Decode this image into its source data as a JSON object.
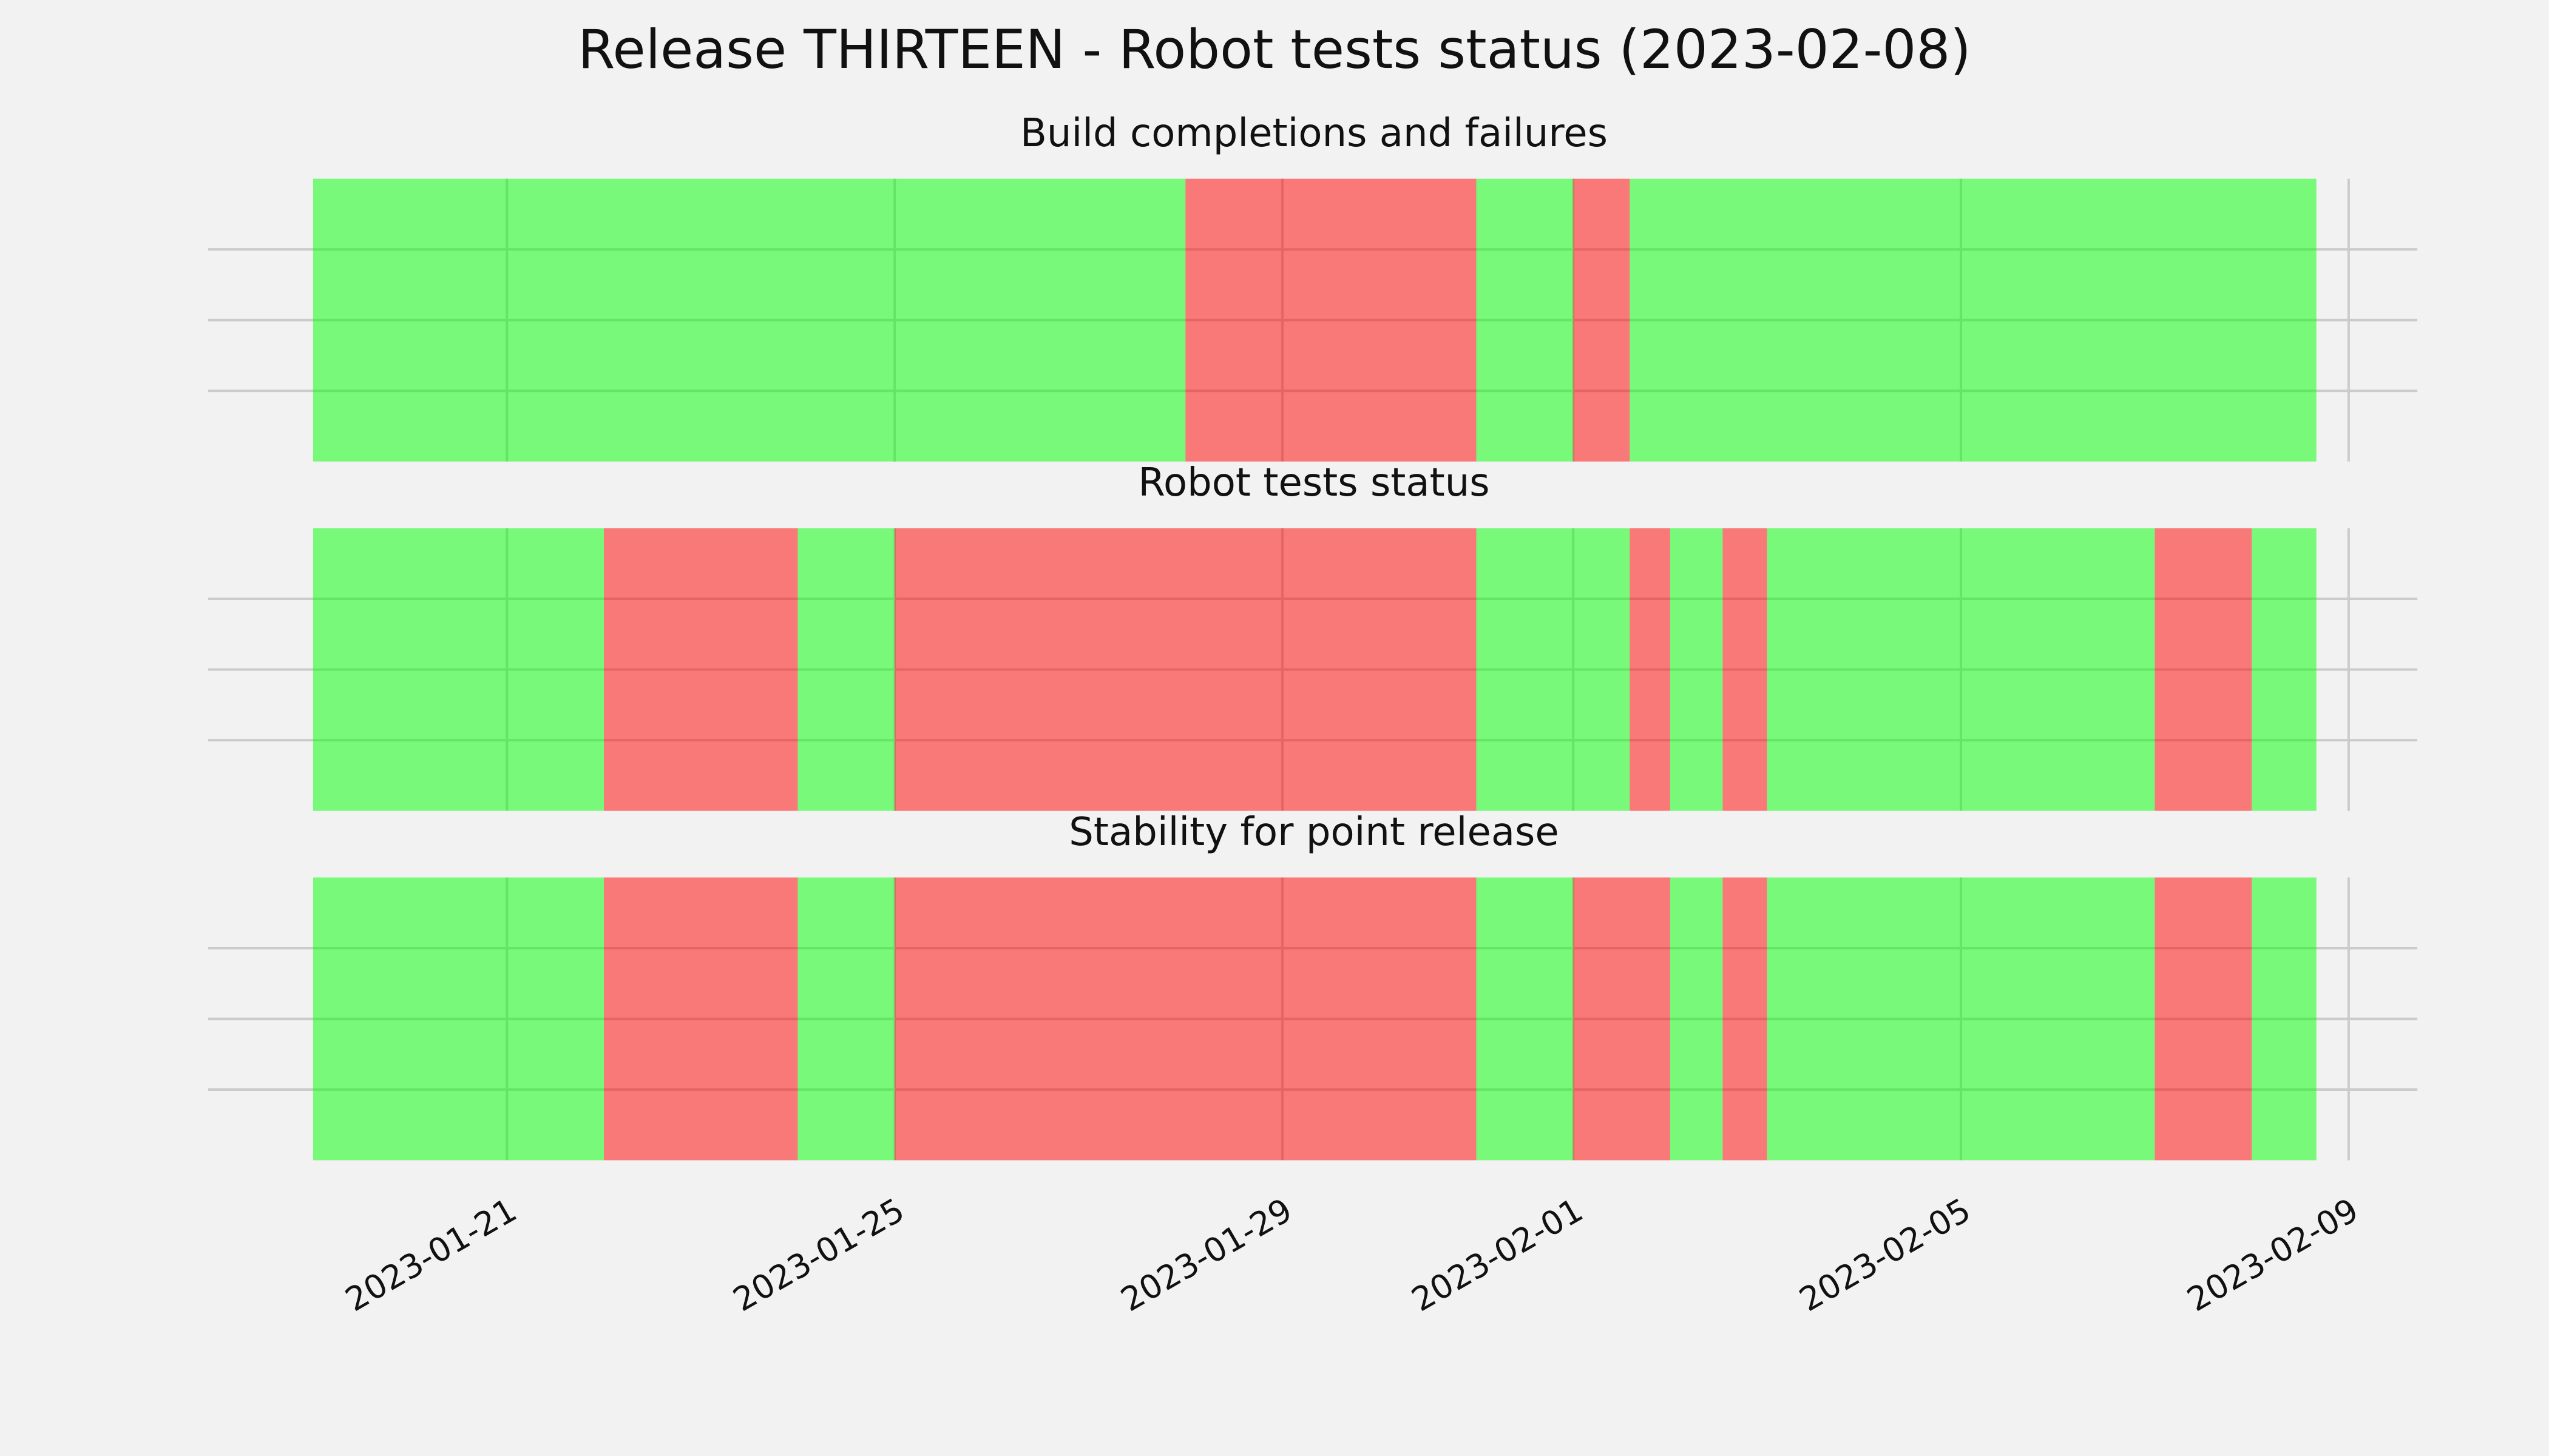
{
  "title": "Release THIRTEEN - Robot tests status (2023-02-08)",
  "xlim": [
    "2023-01-17T22:00",
    "2023-02-09T17:00"
  ],
  "xticks": [
    "2023-01-21",
    "2023-01-25",
    "2023-01-29",
    "2023-02-01",
    "2023-02-05",
    "2023-02-09"
  ],
  "ylim": [
    0,
    1
  ],
  "yticks": [
    0.25,
    0.5,
    0.75
  ],
  "grid": true,
  "alpha": 0.5,
  "chart_data": [
    {
      "type": "timeline",
      "title": "Build completions and failures",
      "edges": [
        "2023-01-19T00:00",
        "2023-01-28T00:00",
        "2023-01-31T00:00",
        "2023-02-01T00:00",
        "2023-02-01T14:00",
        "2023-02-08T16:00"
      ],
      "colors": [
        "#00ff00",
        "#ff0000",
        "#00ff00",
        "#ff0000",
        "#00ff00"
      ]
    },
    {
      "type": "timeline",
      "title": "Robot tests status",
      "edges": [
        "2023-01-19T00:00",
        "2023-01-22T00:00",
        "2023-01-24T00:00",
        "2023-01-25T00:00",
        "2023-01-31T00:00",
        "2023-02-01T14:00",
        "2023-02-02T00:00",
        "2023-02-02T13:00",
        "2023-02-03T00:00",
        "2023-02-07T00:00",
        "2023-02-08T00:00",
        "2023-02-08T16:00"
      ],
      "colors": [
        "#00ff00",
        "#ff0000",
        "#00ff00",
        "#ff0000",
        "#00ff00",
        "#ff0000",
        "#00ff00",
        "#ff0000",
        "#00ff00",
        "#ff0000",
        "#00ff00"
      ]
    },
    {
      "type": "timeline",
      "title": "Stability for point release",
      "edges": [
        "2023-01-19T00:00",
        "2023-01-22T00:00",
        "2023-01-24T00:00",
        "2023-01-25T00:00",
        "2023-01-31T00:00",
        "2023-02-01T00:00",
        "2023-02-02T00:00",
        "2023-02-02T13:00",
        "2023-02-03T00:00",
        "2023-02-07T00:00",
        "2023-02-08T00:00",
        "2023-02-08T16:00"
      ],
      "colors": [
        "#00ff00",
        "#ff0000",
        "#00ff00",
        "#ff0000",
        "#00ff00",
        "#ff0000",
        "#00ff00",
        "#ff0000",
        "#00ff00",
        "#ff0000",
        "#00ff00"
      ]
    }
  ]
}
